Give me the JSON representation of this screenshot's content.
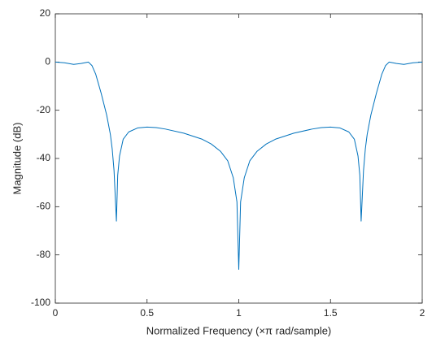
{
  "chart_data": {
    "type": "line",
    "xlabel": "Normalized Frequency  (×π rad/sample)",
    "ylabel": "Magnitude (dB)",
    "xlim": [
      0,
      2
    ],
    "ylim": [
      -100,
      20
    ],
    "xticks": [
      0,
      0.5,
      1,
      1.5,
      2
    ],
    "yticks": [
      -100,
      -80,
      -60,
      -40,
      -20,
      0,
      20
    ],
    "grid": false,
    "x": [
      0,
      0.05,
      0.1,
      0.14,
      0.18,
      0.2,
      0.22,
      0.25,
      0.28,
      0.3,
      0.31,
      0.32,
      0.333,
      0.34,
      0.35,
      0.37,
      0.4,
      0.45,
      0.5,
      0.55,
      0.6,
      0.7,
      0.8,
      0.85,
      0.9,
      0.94,
      0.97,
      0.99,
      1,
      1.01,
      1.03,
      1.06,
      1.1,
      1.15,
      1.2,
      1.3,
      1.4,
      1.45,
      1.5,
      1.55,
      1.6,
      1.63,
      1.65,
      1.66,
      1.667,
      1.68,
      1.69,
      1.7,
      1.72,
      1.75,
      1.78,
      1.8,
      1.82,
      1.86,
      1.9,
      1.95,
      2
    ],
    "series": [
      {
        "color": "#0072bd",
        "values": [
          0,
          -0.3,
          -1,
          -0.6,
          0,
          -1.5,
          -5,
          -13,
          -22,
          -30,
          -36,
          -45,
          -66,
          -47,
          -39,
          -32,
          -29,
          -27.3,
          -27,
          -27.2,
          -27.8,
          -29.5,
          -32,
          -34,
          -37,
          -41,
          -48,
          -58,
          -86,
          -58,
          -48,
          -41,
          -37,
          -34,
          -32,
          -29.5,
          -27.8,
          -27.2,
          -27,
          -27.3,
          -29,
          -32,
          -39,
          -47,
          -66,
          -45,
          -36,
          -30,
          -22,
          -13,
          -5,
          -1.5,
          0,
          -0.6,
          -1,
          -0.3,
          0
        ]
      }
    ]
  }
}
